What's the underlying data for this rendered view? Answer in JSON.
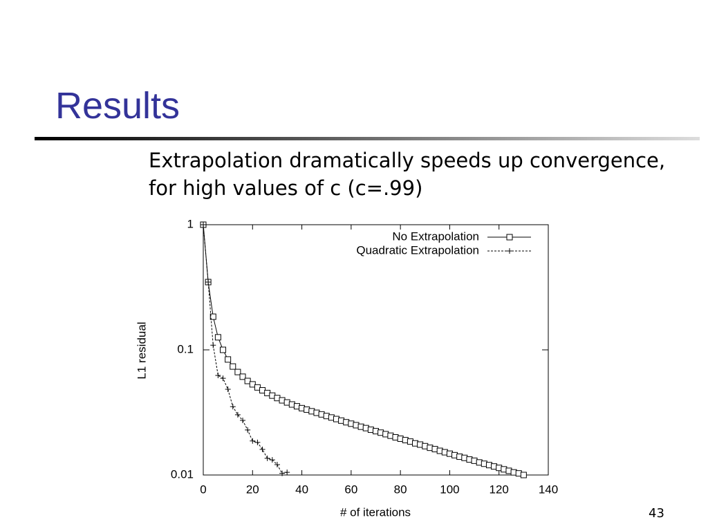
{
  "slide": {
    "title": "Results",
    "body": [
      "Extrapolation dramatically speeds up convergence,",
      "for high values of c (c=.99)"
    ],
    "page_number": "43"
  },
  "chart_data": {
    "type": "line",
    "x_label": "# of iterations",
    "y_label": "L1 residual",
    "log_y": true,
    "legend": "top-right",
    "xlim": [
      0,
      140
    ],
    "xticks": [
      0,
      20,
      40,
      60,
      80,
      100,
      120,
      140
    ],
    "ylim": [
      0.01,
      1
    ],
    "yticks": [
      0.01,
      0.1,
      1
    ],
    "series": [
      {
        "name": "No Extrapolation",
        "color": "#000000",
        "marker": "square",
        "dash": "none",
        "x": [
          0,
          2,
          4,
          6,
          8,
          10,
          12,
          14,
          16,
          18,
          20,
          22,
          24,
          26,
          28,
          30,
          32,
          34,
          36,
          38,
          40,
          42,
          44,
          46,
          48,
          50,
          52,
          54,
          56,
          58,
          60,
          62,
          64,
          66,
          68,
          70,
          72,
          74,
          76,
          78,
          80,
          82,
          84,
          86,
          88,
          90,
          92,
          94,
          96,
          98,
          100,
          102,
          104,
          106,
          108,
          110,
          112,
          114,
          116,
          118,
          120,
          122,
          124,
          126,
          128,
          130
        ],
        "values": [
          1,
          0.348,
          0.184,
          0.126,
          0.1,
          0.0838,
          0.0736,
          0.0665,
          0.061,
          0.0564,
          0.053,
          0.0501,
          0.0475,
          0.0452,
          0.0431,
          0.0412,
          0.0395,
          0.038,
          0.0366,
          0.0354,
          0.0342,
          0.0333,
          0.0323,
          0.0314,
          0.0305,
          0.0296,
          0.0288,
          0.028,
          0.0272,
          0.0264,
          0.0257,
          0.025,
          0.0243,
          0.0237,
          0.023,
          0.0224,
          0.0218,
          0.0212,
          0.0206,
          0.02,
          0.0195,
          0.019,
          0.0185,
          0.0179,
          0.0175,
          0.017,
          0.0165,
          0.0161,
          0.0156,
          0.0152,
          0.0148,
          0.0144,
          0.014,
          0.0137,
          0.0133,
          0.013,
          0.0126,
          0.0123,
          0.012,
          0.0117,
          0.0114,
          0.0111,
          0.0108,
          0.0105,
          0.0103,
          0.01
        ]
      },
      {
        "name": "Quadratic Extrapolation",
        "color": "#000000",
        "marker": "plus",
        "dash": "3,2",
        "x": [
          0,
          2,
          4,
          6,
          8,
          10,
          12,
          14,
          16,
          18,
          20,
          22,
          24,
          26,
          28,
          30,
          32,
          34
        ],
        "values": [
          1,
          0.348,
          0.109,
          0.0625,
          0.0593,
          0.0484,
          0.0352,
          0.0303,
          0.0273,
          0.0229,
          0.0187,
          0.0182,
          0.016,
          0.0136,
          0.0132,
          0.0121,
          0.0103,
          0.0105
        ]
      }
    ]
  }
}
